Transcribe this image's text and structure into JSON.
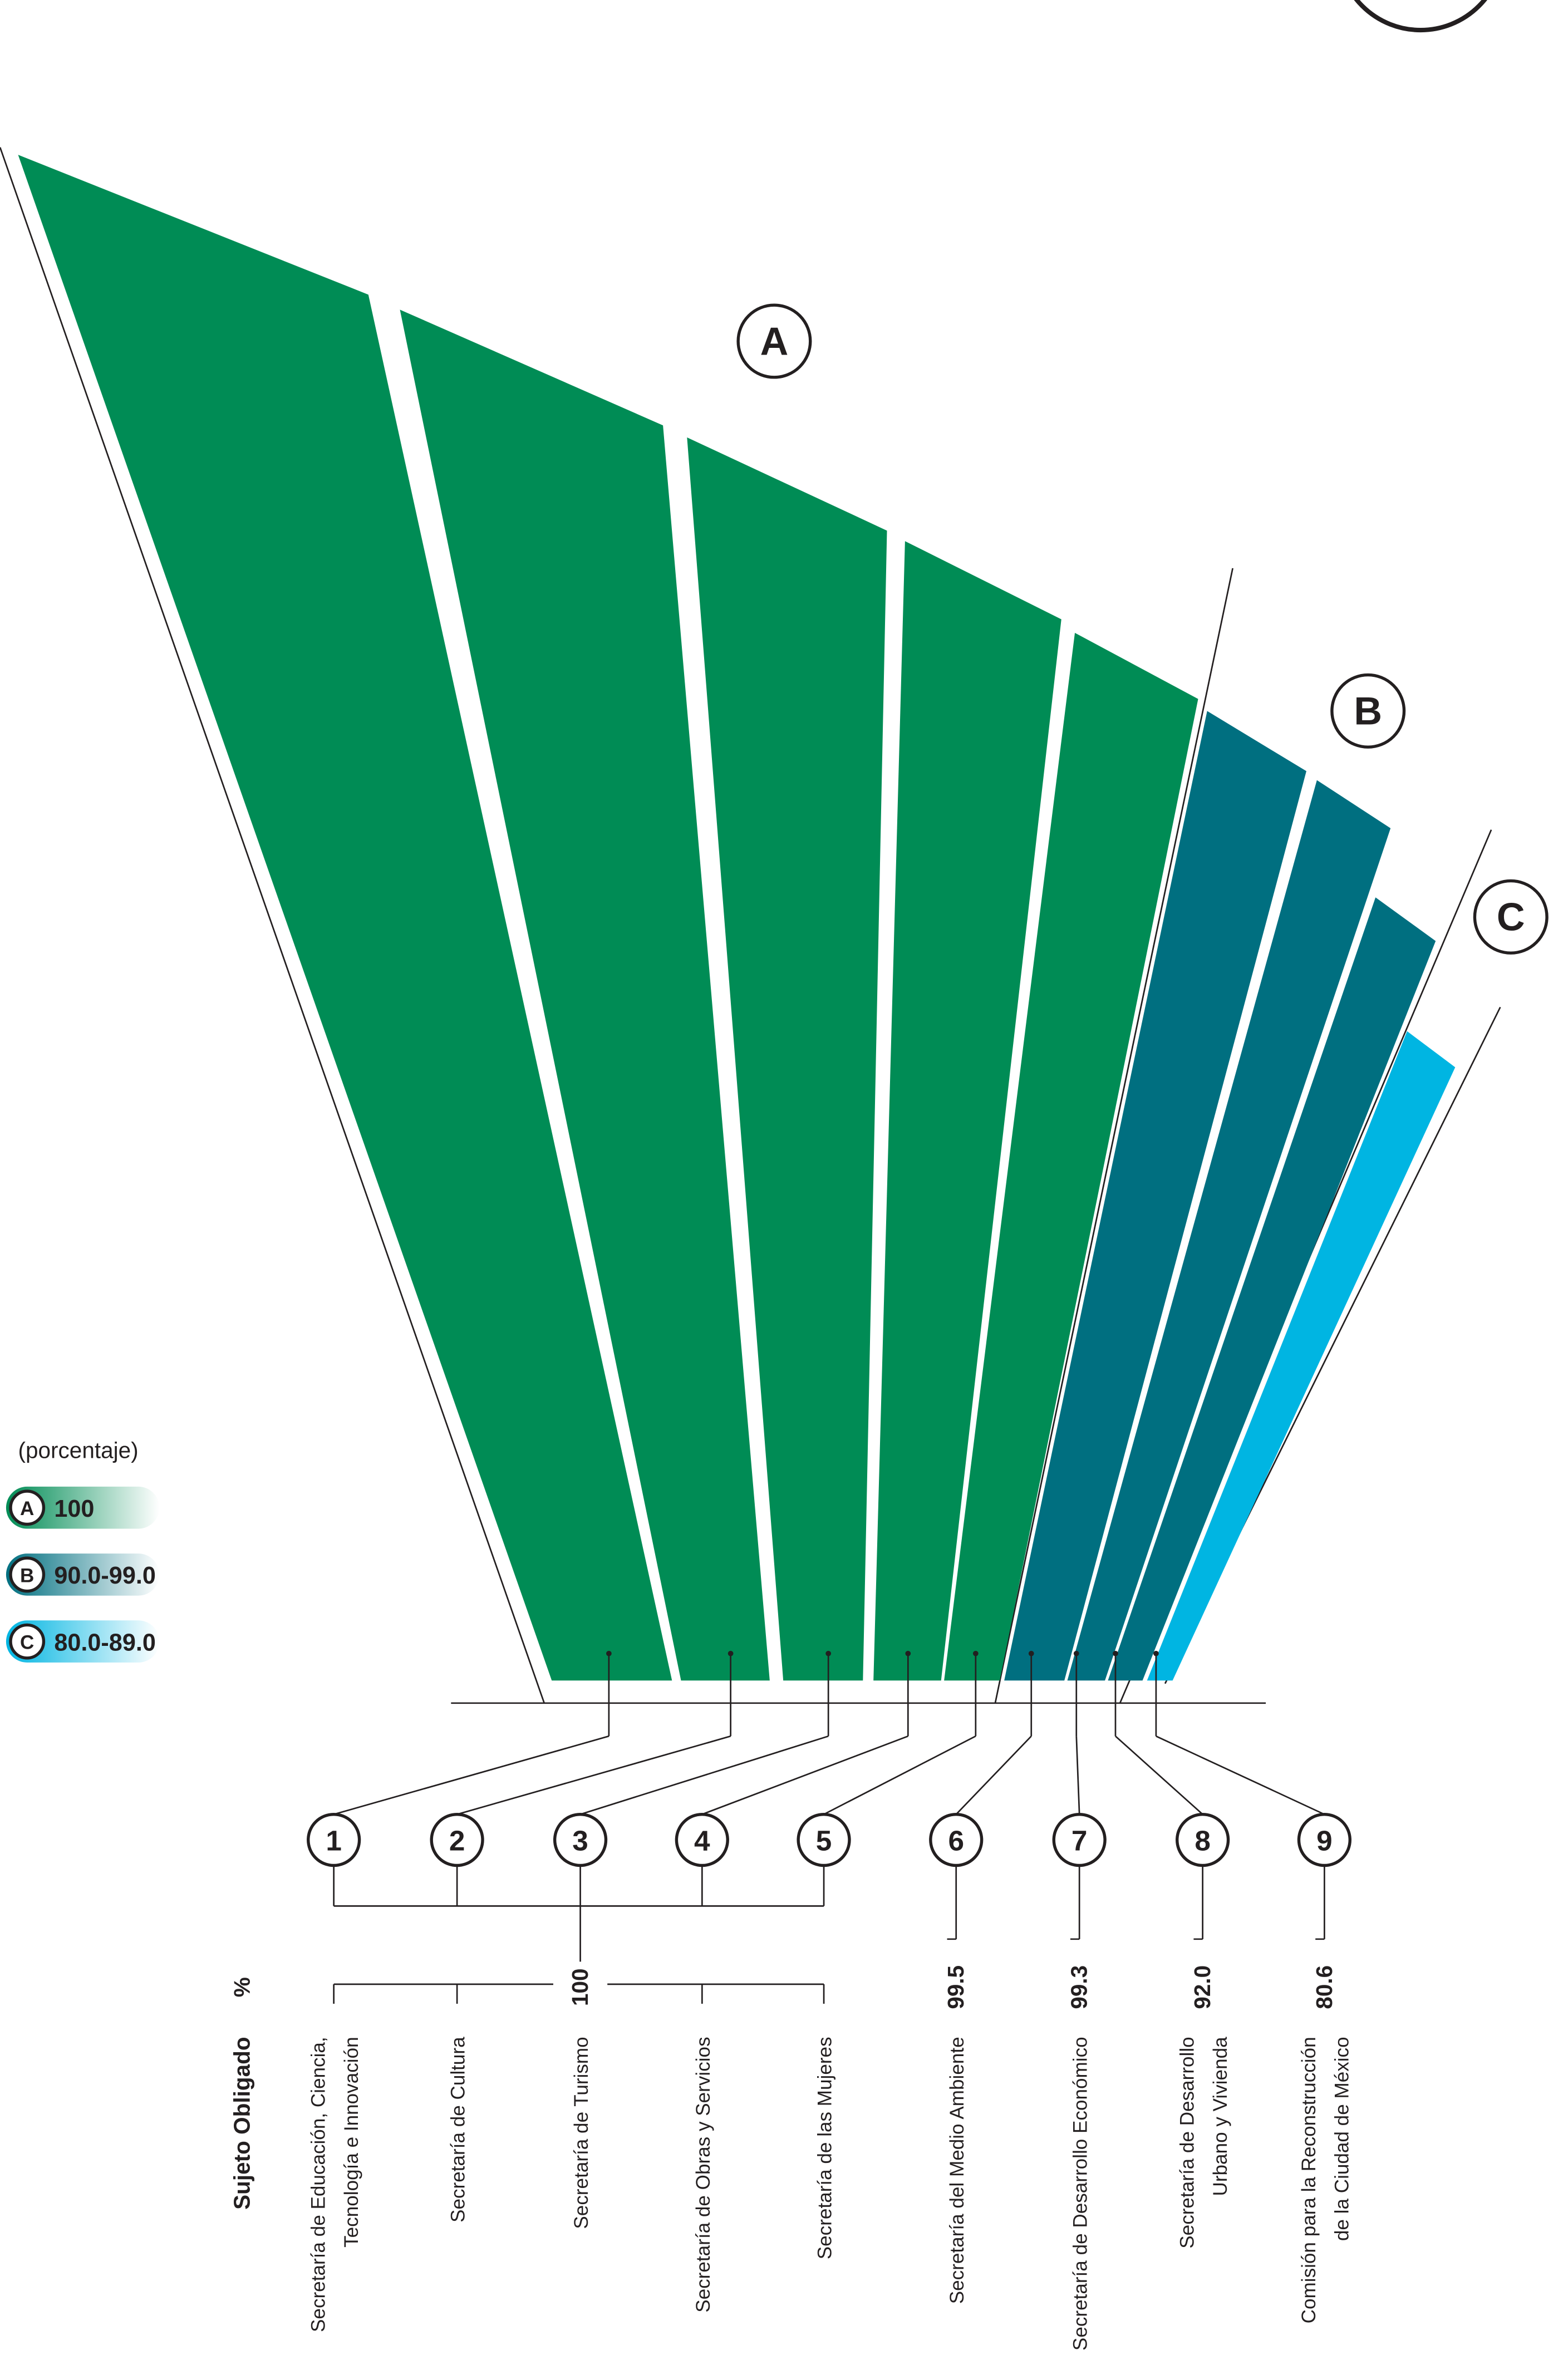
{
  "legend": {
    "title": "(porcentaje)",
    "groups": [
      {
        "letter": "A",
        "label": "100",
        "color": "#008c55"
      },
      {
        "letter": "B",
        "label": "90.0-99.0",
        "color": "#006f80"
      },
      {
        "letter": "C",
        "label": "80.0-89.0",
        "color": "#00b5e2"
      }
    ]
  },
  "chart_data": {
    "type": "fan",
    "header": "Sujeto Obligado",
    "value_header": "%",
    "numbers": [
      "1",
      "2",
      "3",
      "4",
      "5",
      "6",
      "7",
      "8",
      "9"
    ],
    "categories": [
      [
        "Secretaría de Educación, Ciencia,",
        "Tecnología e Innovación"
      ],
      [
        "Secretaría de Cultura"
      ],
      [
        "Secretaría de Turismo"
      ],
      [
        "Secretaría de Obras y Servicios"
      ],
      [
        "Secretaría de las Mujeres"
      ],
      [
        "Secretaría del Medio Ambiente"
      ],
      [
        "Secretaría de Desarrollo Económico"
      ],
      [
        "Secretaría de Desarrollo",
        "Urbano y Vivienda"
      ],
      [
        "Comisión para la Reconstrucción",
        "de la Ciudad de México"
      ]
    ],
    "values": [
      100,
      100,
      100,
      100,
      100,
      99.5,
      99.3,
      92,
      80.6
    ],
    "value_labels": [
      null,
      null,
      "100",
      null,
      null,
      "99.5",
      "99.3",
      "92.0",
      "80.6"
    ],
    "colors": [
      "#008c55",
      "#008c55",
      "#008c55",
      "#008c55",
      "#008c55",
      "#006f80",
      "#006f80",
      "#006f80",
      "#00b5e2"
    ]
  }
}
